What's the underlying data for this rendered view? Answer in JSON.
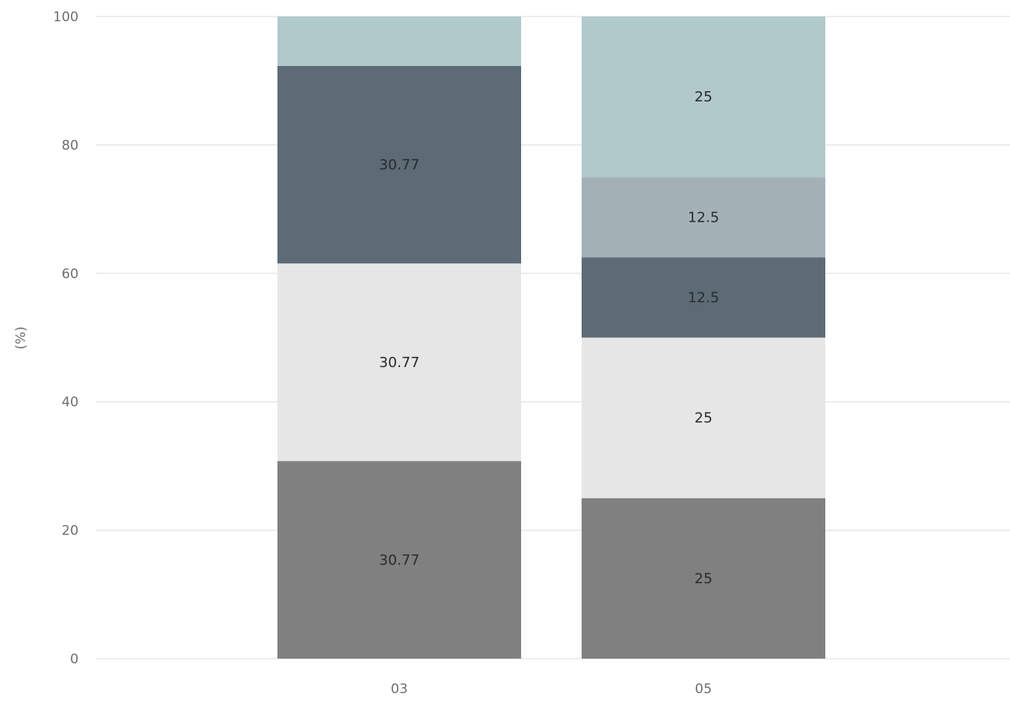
{
  "chart_data": {
    "type": "bar",
    "stacked": true,
    "categories": [
      "03",
      "05"
    ],
    "ylabel": "(%)",
    "ylim": [
      0,
      100
    ],
    "yticks": [
      0,
      20,
      40,
      60,
      80,
      100
    ],
    "grid": true,
    "series": [
      {
        "values": [
          30.77,
          25
        ],
        "labels": [
          "30.77",
          "25"
        ],
        "color": "#808080"
      },
      {
        "values": [
          30.77,
          25
        ],
        "labels": [
          "30.77",
          "25"
        ],
        "color": "#e6e6e6"
      },
      {
        "values": [
          30.77,
          12.5
        ],
        "labels": [
          "30.77",
          "12.5"
        ],
        "color": "#5c6b76"
      },
      {
        "values": [
          0,
          12.5
        ],
        "labels": [
          "",
          "12.5"
        ],
        "color": "#a3b1b7"
      },
      {
        "values": [
          7.69,
          25
        ],
        "labels": [
          "",
          "25"
        ],
        "color": "#b1c9cb"
      }
    ]
  }
}
